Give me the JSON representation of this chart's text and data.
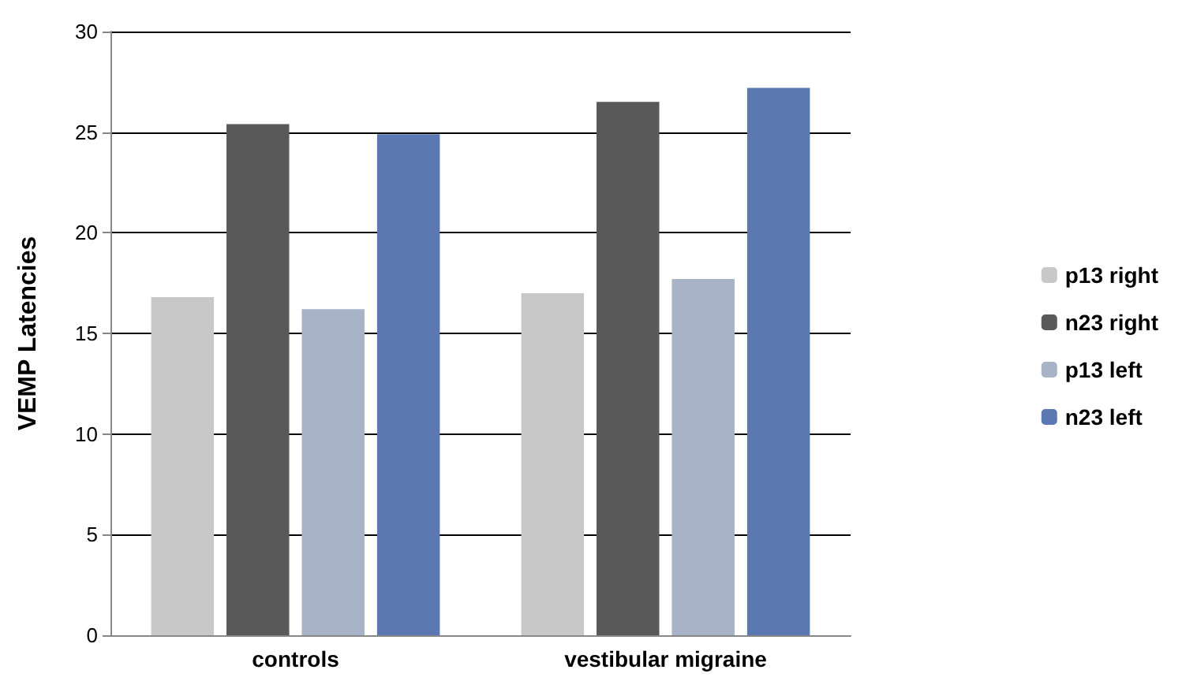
{
  "chart_data": {
    "type": "bar",
    "ylabel": "VEMP Latencies",
    "categories": [
      "controls",
      "vestibular migraine"
    ],
    "series": [
      {
        "name": "p13 right",
        "color": "#c8c8c8",
        "values": [
          16.8,
          17.0
        ]
      },
      {
        "name": "n23 right",
        "color": "#595959",
        "values": [
          25.4,
          26.5
        ]
      },
      {
        "name": "p13 left",
        "color": "#a9b3c8",
        "values": [
          16.2,
          17.7
        ]
      },
      {
        "name": "n23 left",
        "color": "#5b78b2",
        "values": [
          24.9,
          27.2
        ]
      }
    ],
    "ylim": [
      0,
      30
    ],
    "yticks": [
      0,
      5,
      10,
      15,
      20,
      25,
      30
    ],
    "grid": "y",
    "legend": "right"
  }
}
